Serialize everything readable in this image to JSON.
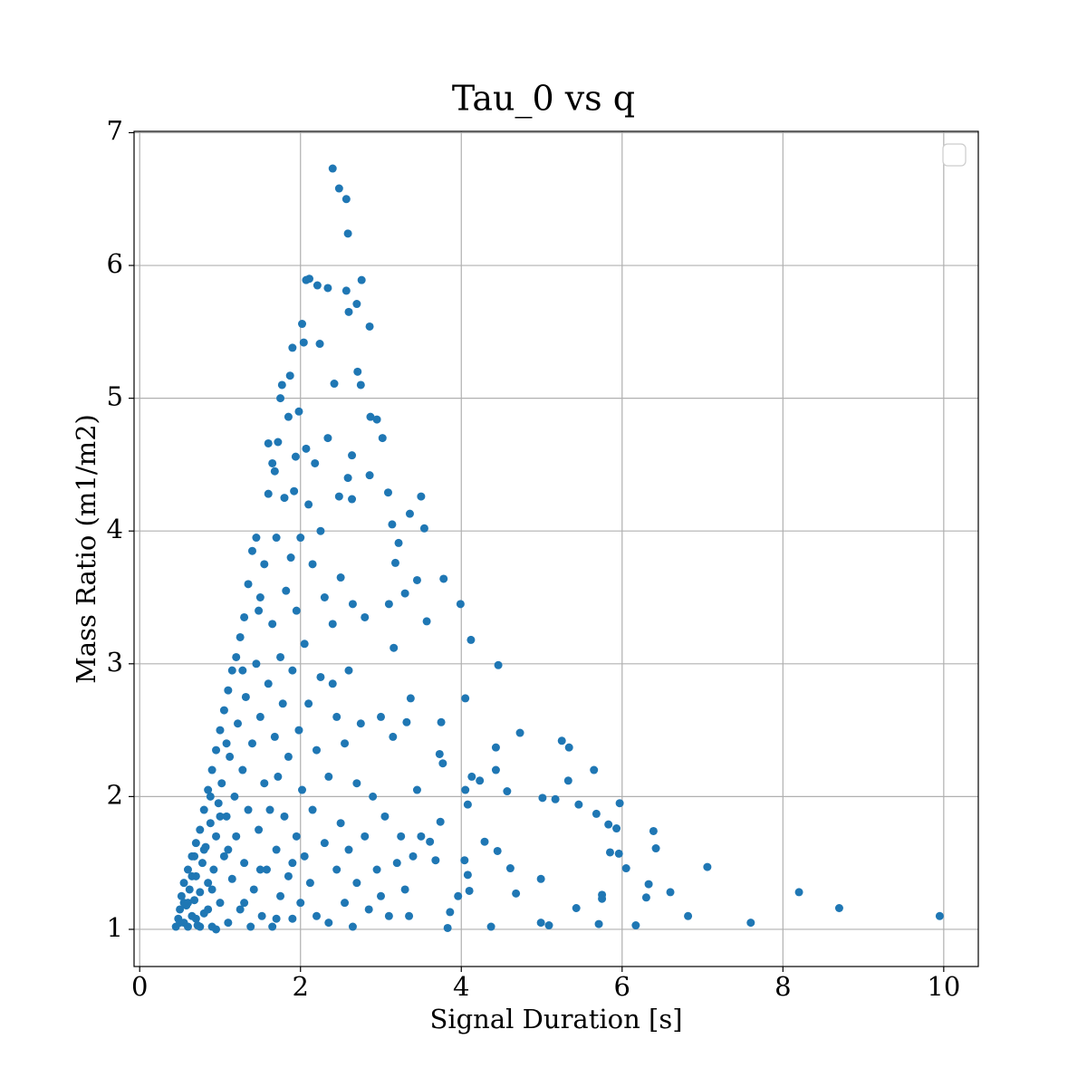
{
  "chart_data": {
    "type": "scatter",
    "title": "Tau_0 vs q",
    "x_label": "Signal Duration [s]",
    "y_label": "Mass Ratio (m1/m2)",
    "color": "#1f77b4",
    "grid": true,
    "xlim": [
      -0.07,
      10.43
    ],
    "ylim": [
      0.72,
      7.01
    ],
    "xticks": [
      0,
      2,
      4,
      6,
      8,
      10
    ],
    "yticks": [
      1,
      2,
      3,
      4,
      5,
      6,
      7
    ],
    "x": [
      2.4,
      2.48,
      2.57,
      2.59,
      2.07,
      2.11,
      2.21,
      2.34,
      2.57,
      2.76,
      2.7,
      2.6,
      2.86,
      2.02,
      2.04,
      2.24,
      1.9,
      1.87,
      1.77,
      2.71,
      2.75,
      2.42,
      1.75,
      1.85,
      1.98,
      2.87,
      2.95,
      3.02,
      2.34,
      2.64,
      1.6,
      1.72,
      2.07,
      1.65,
      1.68,
      1.94,
      2.18,
      2.86,
      2.59,
      3.5,
      3.09,
      2.48,
      3.54,
      3.36,
      3.14,
      2.64,
      3.22,
      3.18,
      3.78,
      3.45,
      3.3,
      3.99,
      3.57,
      4.12,
      3.16,
      4.46,
      4.05,
      3.37,
      3.75,
      4.73,
      3.32,
      4.43,
      5.25,
      5.34,
      3.73,
      3.77,
      4.43,
      5.65,
      4.13,
      5.33,
      4.57,
      4.23,
      5.01,
      5.17,
      5.97,
      5.46,
      4.08,
      5.68,
      5.83,
      5.93,
      6.39,
      6.42,
      5.96,
      4.29,
      4.45,
      5.85,
      6.05,
      7.06,
      4.61,
      4.99,
      6.33,
      5.75,
      5.75,
      6.3,
      6.6,
      8.2,
      8.7,
      9.95,
      6.82,
      7.6,
      5.71,
      6.17,
      5.09,
      4.99,
      5.43,
      4.37,
      4.1,
      3.96,
      3.86,
      3.83,
      4.08,
      4.04,
      3.68,
      4.68,
      3.74,
      3.61,
      4.05,
      0.45,
      0.48,
      0.5,
      0.52,
      0.55,
      0.55,
      0.58,
      0.6,
      0.6,
      0.62,
      0.65,
      0.65,
      0.68,
      0.7,
      0.7,
      0.72,
      0.75,
      0.75,
      0.78,
      0.8,
      0.8,
      0.82,
      0.85,
      0.85,
      0.88,
      0.9,
      0.9,
      0.92,
      0.95,
      0.95,
      0.98,
      1,
      1,
      1.02,
      1.05,
      1.05,
      1.08,
      1.1,
      1.1,
      1.12,
      1.15,
      1.15,
      1.18,
      1.2,
      1.2,
      1.22,
      1.25,
      1.25,
      1.28,
      1.3,
      1.3,
      1.32,
      1.35,
      1.35,
      1.38,
      1.4,
      1.4,
      1.42,
      1.45,
      1.45,
      1.48,
      1.5,
      1.5,
      1.52,
      1.55,
      1.55,
      1.58,
      1.6,
      1.6,
      1.62,
      1.65,
      1.65,
      1.68,
      1.7,
      1.7,
      1.72,
      1.75,
      1.75,
      1.78,
      1.8,
      1.8,
      1.82,
      1.85,
      1.85,
      1.88,
      1.9,
      1.9,
      1.92,
      1.95,
      1.95,
      1.98,
      2,
      2,
      2.02,
      2.05,
      2.05,
      2.1,
      2.1,
      2.12,
      2.15,
      2.15,
      2.2,
      2.2,
      2.25,
      2.25,
      2.3,
      2.3,
      2.35,
      2.35,
      2.4,
      2.4,
      2.45,
      2.45,
      2.5,
      2.5,
      2.55,
      2.55,
      2.6,
      2.6,
      2.65,
      2.65,
      2.7,
      2.7,
      2.75,
      2.8,
      2.8,
      2.85,
      2.9,
      2.95,
      3,
      3,
      3.05,
      3.1,
      3.1,
      3.15,
      3.2,
      3.25,
      3.3,
      3.35,
      3.4,
      3.45,
      3.5,
      0.5,
      0.6,
      0.7,
      0.8,
      0.9,
      1,
      0.75,
      0.65,
      0.85,
      0.95,
      1.1,
      1.3,
      1.5,
      1.7,
      1.9,
      0.55,
      0.68,
      0.88,
      1.08,
      1.28,
      1.48
    ],
    "values": [
      6.73,
      6.58,
      6.5,
      6.24,
      5.89,
      5.9,
      5.85,
      5.83,
      5.81,
      5.89,
      5.71,
      5.65,
      5.54,
      5.56,
      5.42,
      5.41,
      5.38,
      5.17,
      5.1,
      5.2,
      5.1,
      5.11,
      5.0,
      4.86,
      4.9,
      4.86,
      4.84,
      4.7,
      4.7,
      4.57,
      4.66,
      4.67,
      4.62,
      4.51,
      4.45,
      4.56,
      4.51,
      4.42,
      4.4,
      4.26,
      4.29,
      4.26,
      4.02,
      4.13,
      4.05,
      4.24,
      3.91,
      3.76,
      3.64,
      3.63,
      3.53,
      3.45,
      3.32,
      3.18,
      3.12,
      2.99,
      2.74,
      2.74,
      2.56,
      2.48,
      2.56,
      2.37,
      2.42,
      2.37,
      2.32,
      2.25,
      2.2,
      2.2,
      2.15,
      2.12,
      2.04,
      2.12,
      1.99,
      1.98,
      1.95,
      1.94,
      1.94,
      1.87,
      1.79,
      1.76,
      1.74,
      1.61,
      1.57,
      1.66,
      1.59,
      1.58,
      1.46,
      1.47,
      1.46,
      1.38,
      1.34,
      1.26,
      1.23,
      1.24,
      1.28,
      1.28,
      1.16,
      1.1,
      1.1,
      1.05,
      1.04,
      1.03,
      1.03,
      1.05,
      1.16,
      1.02,
      1.29,
      1.25,
      1.13,
      1.01,
      1.41,
      1.52,
      1.52,
      1.27,
      1.81,
      1.66,
      2.05,
      1.02,
      1.08,
      1.15,
      1.25,
      1.05,
      1.35,
      1.18,
      1.45,
      1.02,
      1.3,
      1.55,
      1.1,
      1.22,
      1.65,
      1.4,
      1.03,
      1.75,
      1.28,
      1.5,
      1.9,
      1.12,
      1.62,
      2.05,
      1.35,
      1.8,
      2.2,
      1.02,
      1.45,
      2.35,
      1.7,
      1.95,
      2.5,
      1.2,
      2.1,
      2.65,
      1.55,
      1.85,
      2.8,
      1.05,
      2.3,
      2.95,
      1.38,
      2,
      3.05,
      1.7,
      2.55,
      1.15,
      3.2,
      2.2,
      3.35,
      1.5,
      2.75,
      1.9,
      3.6,
      1.02,
      3.85,
      2.4,
      1.3,
      3,
      3.95,
      1.75,
      2.6,
      3.5,
      1.1,
      2.1,
      3.75,
      1.45,
      4.28,
      2.85,
      1.9,
      3.3,
      1.02,
      2.45,
      3.95,
      1.6,
      2.15,
      3.05,
      1.25,
      2.7,
      4.25,
      1.85,
      3.55,
      1.4,
      2.3,
      3.8,
      1.08,
      2.95,
      4.3,
      1.7,
      3.4,
      2.5,
      1.2,
      3.95,
      2.05,
      1.55,
      3.15,
      2.7,
      4.2,
      1.35,
      1.9,
      3.75,
      2.35,
      1.1,
      2.9,
      4,
      1.65,
      3.5,
      2.15,
      1.05,
      2.85,
      3.3,
      1.45,
      2.6,
      1.8,
      3.65,
      1.2,
      2.4,
      2.95,
      1.6,
      3.45,
      1.02,
      2.1,
      1.35,
      2.55,
      1.7,
      3.35,
      1.15,
      2,
      1.45,
      2.6,
      1.25,
      1.85,
      1.1,
      3.45,
      2.45,
      1.5,
      1.7,
      1.3,
      1.1,
      1.55,
      2.05,
      1.7,
      1.05,
      1.2,
      1.08,
      1.6,
      1.3,
      1.85,
      1.02,
      1.4,
      1.15,
      1,
      1.6,
      1.2,
      1.45,
      1.08,
      1.5,
      1.2,
      1.55,
      2,
      2.4,
      2.95,
      3.4
    ]
  }
}
